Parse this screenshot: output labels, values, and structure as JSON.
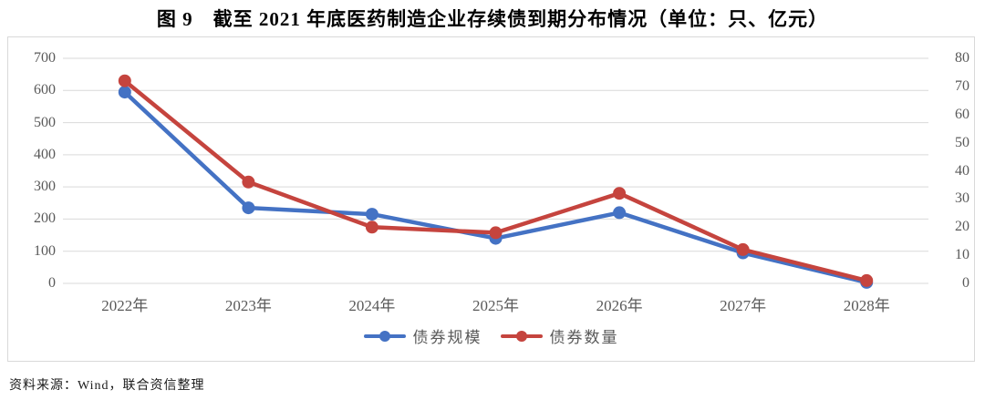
{
  "title": "图 9　截至 2021 年底医药制造企业存续债到期分布情况（单位：只、亿元）",
  "source": "资料来源：Wind，联合资信整理",
  "chart_data": {
    "type": "line",
    "title": "图 9　截至 2021 年底医药制造企业存续债到期分布情况（单位：只、亿元）",
    "categories": [
      "2022年",
      "2023年",
      "2024年",
      "2025年",
      "2026年",
      "2027年",
      "2028年"
    ],
    "series": [
      {
        "name": "债券规模",
        "unit": "亿元",
        "axis": "left",
        "color": "#4472C4",
        "values": [
          595,
          235,
          215,
          140,
          220,
          95,
          3
        ]
      },
      {
        "name": "债券数量",
        "unit": "只",
        "axis": "right",
        "color": "#C5443E",
        "values": [
          72,
          36,
          20,
          18,
          32,
          12,
          1
        ]
      }
    ],
    "left_axis": {
      "min": 0,
      "max": 700,
      "step": 100,
      "ticks": [
        700,
        600,
        500,
        400,
        300,
        200,
        100,
        0
      ]
    },
    "right_axis": {
      "min": 0,
      "max": 80,
      "step": 10,
      "ticks": [
        80,
        70,
        60,
        50,
        40,
        30,
        20,
        10,
        0
      ]
    },
    "grid": true,
    "gridline_color": "#d9d9d9",
    "legend_position": "bottom",
    "xlabel": "",
    "ylabel_left": "亿元",
    "ylabel_right": "只"
  }
}
